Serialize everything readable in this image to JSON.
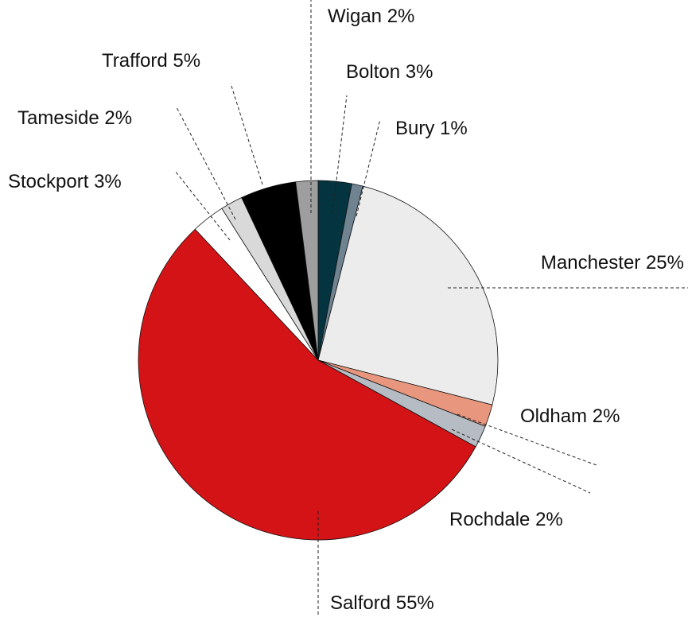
{
  "chart_data": {
    "type": "pie",
    "categories": [
      "Bolton",
      "Bury",
      "Manchester",
      "Oldham",
      "Rochdale",
      "Salford",
      "Stockport",
      "Tameside",
      "Trafford",
      "Wigan"
    ],
    "values": [
      3,
      1,
      25,
      2,
      2,
      55,
      3,
      2,
      5,
      2
    ],
    "value_labels": [
      "3%",
      "1%",
      "25%",
      "2%",
      "2%",
      "55%",
      "3%",
      "2%",
      "5%",
      "2%"
    ],
    "colors": [
      "#033440",
      "#6f8390",
      "#ececec",
      "#e8967e",
      "#b5bcc3",
      "#d41317",
      "#ffffff",
      "#d9d9d9",
      "#000000",
      "#9e9e9e"
    ]
  }
}
